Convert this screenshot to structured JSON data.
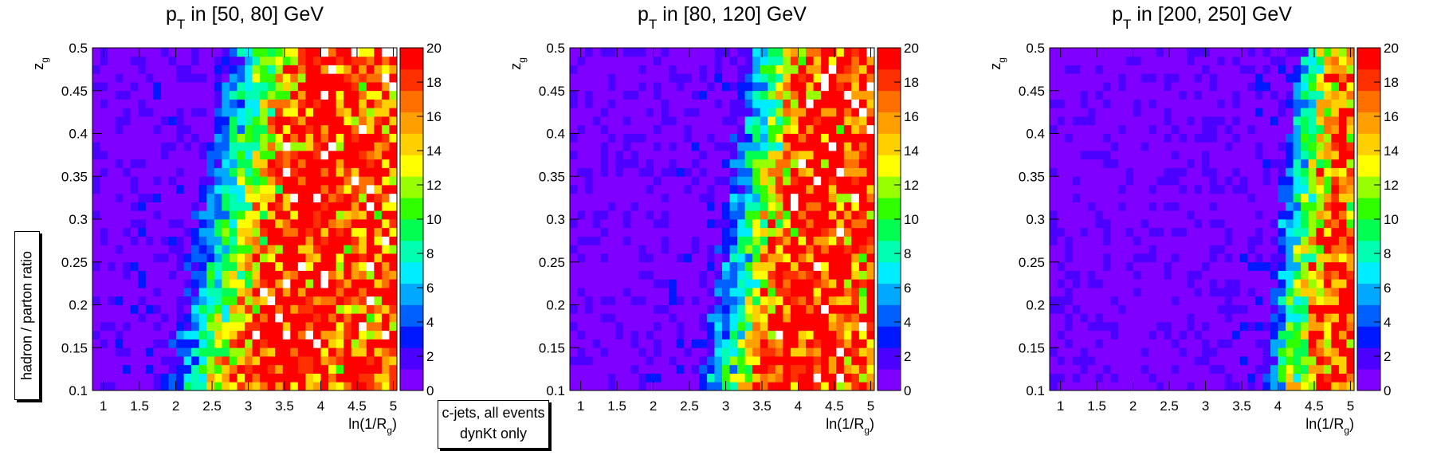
{
  "side_label": "hadron / parton ratio",
  "note": {
    "line1": "c-jets, all events",
    "line2": "dynKt only"
  },
  "colors": [
    "#8000ff",
    "#4c00ff",
    "#0018ff",
    "#0060ff",
    "#00a8ff",
    "#00ecff",
    "#00ffb0",
    "#00ff50",
    "#30ff00",
    "#98ff00",
    "#ffff00",
    "#ffd000",
    "#ffa000",
    "#ff7000",
    "#ff3000",
    "#ff0000"
  ],
  "chart_data": [
    {
      "type": "heatmap",
      "title": "p_T in [50, 80] GeV",
      "title_parts": {
        "p": "p",
        "sub": "T",
        "rest": " in [50, 80] GeV"
      },
      "xlabel": "ln(1/R_g)",
      "xlabel_parts": {
        "main": "ln(1/R",
        "sub": "g",
        "close": ")"
      },
      "ylabel": "z_g",
      "ylabel_parts": {
        "main": "z",
        "sub": "g"
      },
      "xlim": [
        0.85,
        5.05
      ],
      "ylim": [
        0.1,
        0.5
      ],
      "zlim": [
        0,
        20
      ],
      "xticks": [
        "1",
        "1.5",
        "2",
        "2.5",
        "3",
        "3.5",
        "4",
        "4.5",
        "5"
      ],
      "xtick_values": [
        1,
        1.5,
        2,
        2.5,
        3,
        3.5,
        4,
        4.5,
        5
      ],
      "yticks": [
        "0.1",
        "0.15",
        "0.2",
        "0.25",
        "0.3",
        "0.35",
        "0.4",
        "0.45",
        "0.5"
      ],
      "ytick_values": [
        0.1,
        0.15,
        0.2,
        0.25,
        0.3,
        0.35,
        0.4,
        0.45,
        0.5
      ],
      "zticks": [
        "0",
        "2",
        "4",
        "6",
        "8",
        "10",
        "12",
        "14",
        "16",
        "18",
        "20"
      ],
      "zmin": 0,
      "zmax": 20,
      "bins_x": 40,
      "bins_y": 40,
      "ridge": {
        "x_at_low_z": 2.9,
        "x_at_high_z": 3.75,
        "width": 0.55,
        "peak": 20,
        "saturate_x": 4.2
      }
    },
    {
      "type": "heatmap",
      "title": "p_T in [80, 120] GeV",
      "title_parts": {
        "p": "p",
        "sub": "T",
        "rest": " in [80, 120] GeV"
      },
      "xlabel": "ln(1/R_g)",
      "xlabel_parts": {
        "main": "ln(1/R",
        "sub": "g",
        "close": ")"
      },
      "ylabel": "z_g",
      "ylabel_parts": {
        "main": "z",
        "sub": "g"
      },
      "xlim": [
        0.85,
        5.05
      ],
      "ylim": [
        0.1,
        0.5
      ],
      "zlim": [
        0,
        20
      ],
      "xticks": [
        "1",
        "1.5",
        "2",
        "2.5",
        "3",
        "3.5",
        "4",
        "4.5",
        "5"
      ],
      "xtick_values": [
        1,
        1.5,
        2,
        2.5,
        3,
        3.5,
        4,
        4.5,
        5
      ],
      "yticks": [
        "0.1",
        "0.15",
        "0.2",
        "0.25",
        "0.3",
        "0.35",
        "0.4",
        "0.45",
        "0.5"
      ],
      "ytick_values": [
        0.1,
        0.15,
        0.2,
        0.25,
        0.3,
        0.35,
        0.4,
        0.45,
        0.5
      ],
      "zticks": [
        "0",
        "2",
        "4",
        "6",
        "8",
        "10",
        "12",
        "14",
        "16",
        "18",
        "20"
      ],
      "zmin": 0,
      "zmax": 20,
      "bins_x": 40,
      "bins_y": 40,
      "ridge": {
        "x_at_low_z": 3.5,
        "x_at_high_z": 4.15,
        "width": 0.45,
        "peak": 20,
        "saturate_x": 4.5
      }
    },
    {
      "type": "heatmap",
      "title": "p_T in [200, 250] GeV",
      "title_parts": {
        "p": "p",
        "sub": "T",
        "rest": " in [200, 250] GeV"
      },
      "xlabel": "ln(1/R_g)",
      "xlabel_parts": {
        "main": "ln(1/R",
        "sub": "g",
        "close": ")"
      },
      "ylabel": "z_g",
      "ylabel_parts": {
        "main": "z",
        "sub": "g"
      },
      "xlim": [
        0.85,
        5.05
      ],
      "ylim": [
        0.1,
        0.5
      ],
      "zlim": [
        0,
        20
      ],
      "xticks": [
        "1",
        "1.5",
        "2",
        "2.5",
        "3",
        "3.5",
        "4",
        "4.5",
        "5"
      ],
      "xtick_values": [
        1,
        1.5,
        2,
        2.5,
        3,
        3.5,
        4,
        4.5,
        5
      ],
      "yticks": [
        "0.1",
        "0.15",
        "0.2",
        "0.25",
        "0.3",
        "0.35",
        "0.4",
        "0.45",
        "0.5"
      ],
      "ytick_values": [
        0.1,
        0.15,
        0.2,
        0.25,
        0.3,
        0.35,
        0.4,
        0.45,
        0.5
      ],
      "zticks": [
        "0",
        "2",
        "4",
        "6",
        "8",
        "10",
        "12",
        "14",
        "16",
        "18",
        "20"
      ],
      "zmin": 0,
      "zmax": 20,
      "bins_x": 40,
      "bins_y": 40,
      "ridge": {
        "x_at_low_z": 4.35,
        "x_at_high_z": 4.8,
        "width": 0.3,
        "peak": 18,
        "saturate_x": 4.95
      }
    }
  ]
}
